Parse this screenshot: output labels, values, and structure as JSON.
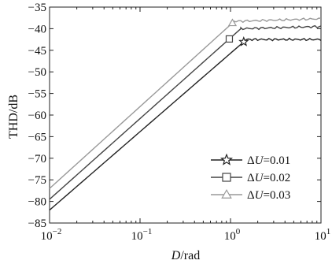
{
  "chart_data": {
    "type": "line",
    "xlabel": {
      "var": "D",
      "unit": "/rad"
    },
    "ylabel": "THD/dB",
    "xscale": "log",
    "xlim": [
      0.01,
      10
    ],
    "ylim": [
      -85,
      -35
    ],
    "x_ticks": [
      {
        "value": 0.01,
        "base": "10",
        "exp": "-2"
      },
      {
        "value": 0.1,
        "base": "10",
        "exp": "-1"
      },
      {
        "value": 1,
        "base": "10",
        "exp": "0"
      },
      {
        "value": 10,
        "base": "10",
        "exp": "1"
      }
    ],
    "y_ticks": [
      -35,
      -40,
      -45,
      -50,
      -55,
      -60,
      -65,
      -70,
      -75,
      -80,
      -85
    ],
    "grid": false,
    "legend": {
      "placement": "bottom-right"
    },
    "series": [
      {
        "name": "ΔU=0.01",
        "label_prefix": "Δ",
        "label_var": "U",
        "label_value": "=0.01",
        "marker": "star",
        "color": "#222222",
        "marker_at": 1.4,
        "points": [
          [
            0.01,
            -82
          ],
          [
            1.5,
            -42.5
          ],
          [
            10,
            -42.5
          ]
        ]
      },
      {
        "name": "ΔU=0.02",
        "label_prefix": "Δ",
        "label_var": "U",
        "label_value": "=0.02",
        "marker": "square",
        "color": "#444444",
        "marker_at": 0.97,
        "points": [
          [
            0.01,
            -79.5
          ],
          [
            1.3,
            -40
          ],
          [
            10,
            -39.5
          ]
        ]
      },
      {
        "name": "ΔU=0.03",
        "label_prefix": "Δ",
        "label_var": "U",
        "label_value": "=0.03",
        "marker": "triangle",
        "color": "#999999",
        "marker_at": 1.05,
        "points": [
          [
            0.01,
            -77
          ],
          [
            1.1,
            -38.3
          ],
          [
            10,
            -37.7
          ]
        ]
      }
    ]
  }
}
